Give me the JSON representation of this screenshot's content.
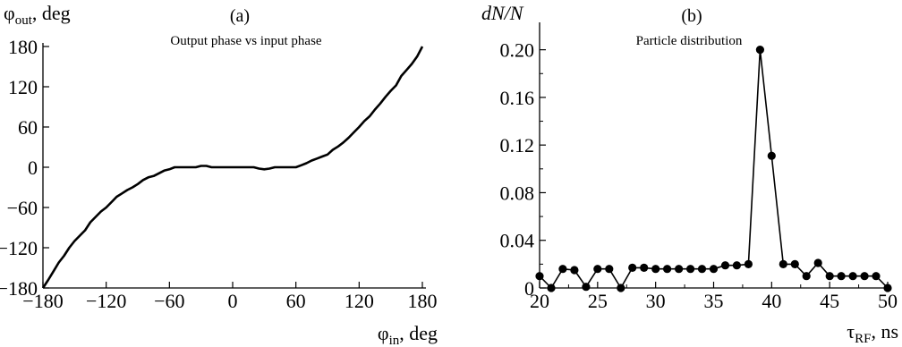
{
  "chart_data": [
    {
      "type": "line",
      "panel_label": "(a)",
      "title": "Output phase vs input phase",
      "ylabel_base": "φ",
      "ylabel_sub": "out",
      "ylabel_tail": ", deg",
      "xlabel_base": "φ",
      "xlabel_sub": "in",
      "xlabel_tail": ", deg",
      "xlim": [
        -180,
        180
      ],
      "ylim": [
        -180,
        180
      ],
      "xticks": [
        -180,
        -120,
        -60,
        0,
        60,
        120,
        180
      ],
      "xtick_labels": [
        "−180",
        "−120",
        "−60",
        "0",
        "60",
        "120",
        "180"
      ],
      "yticks": [
        -180,
        -120,
        -60,
        0,
        60,
        120,
        180
      ],
      "ytick_labels": [
        "−180",
        "−120",
        "−60",
        "0",
        "60",
        "120",
        "180"
      ],
      "grid": false,
      "series": [
        {
          "x": [
            -180,
            -175,
            -170,
            -165,
            -160,
            -155,
            -150,
            -145,
            -140,
            -135,
            -130,
            -125,
            -120,
            -115,
            -110,
            -105,
            -100,
            -95,
            -90,
            -85,
            -80,
            -75,
            -70,
            -65,
            -60,
            -55,
            -50,
            -45,
            -40,
            -35,
            -30,
            -25,
            -20,
            -15,
            -10,
            -5,
            0,
            5,
            10,
            15,
            20,
            25,
            30,
            35,
            40,
            45,
            50,
            55,
            60,
            65,
            70,
            75,
            80,
            85,
            90,
            95,
            100,
            105,
            110,
            115,
            120,
            125,
            130,
            135,
            140,
            145,
            150,
            155,
            160,
            165,
            170,
            175,
            180
          ],
          "y": [
            -180,
            -168,
            -155,
            -142,
            -132,
            -120,
            -110,
            -102,
            -94,
            -82,
            -74,
            -66,
            -60,
            -52,
            -44,
            -39,
            -34,
            -30,
            -25,
            -19,
            -15,
            -13,
            -9,
            -5,
            -3,
            0,
            0,
            0,
            0,
            0,
            2,
            2,
            0,
            0,
            0,
            0,
            0,
            0,
            0,
            0,
            0,
            -2,
            -3,
            -2,
            0,
            0,
            0,
            0,
            0,
            3,
            6,
            10,
            13,
            16,
            19,
            26,
            31,
            37,
            44,
            52,
            60,
            69,
            76,
            86,
            95,
            105,
            114,
            122,
            136,
            145,
            154,
            165,
            180
          ]
        }
      ]
    },
    {
      "type": "line",
      "panel_label": "(b)",
      "title": "Particle distribution",
      "ylabel": "dN/N",
      "xlabel_base": "τ",
      "xlabel_sub": "RF",
      "xlabel_tail": ", ns",
      "xlim": [
        20,
        50
      ],
      "ylim": [
        0,
        0.22
      ],
      "xticks": [
        20,
        25,
        30,
        35,
        40,
        45,
        50
      ],
      "xtick_labels": [
        "20",
        "25",
        "30",
        "35",
        "40",
        "45",
        "50"
      ],
      "yticks": [
        0,
        0.04,
        0.08,
        0.12,
        0.16,
        0.2
      ],
      "ytick_labels": [
        "0",
        "0.04",
        "0.08",
        "0.12",
        "0.16",
        "0.20"
      ],
      "grid": false,
      "markers": true,
      "series": [
        {
          "x": [
            20,
            21,
            22,
            23,
            24,
            25,
            26,
            27,
            28,
            29,
            30,
            31,
            32,
            33,
            34,
            35,
            36,
            37,
            38,
            39,
            40,
            41,
            42,
            43,
            44,
            45,
            46,
            47,
            48,
            49,
            50
          ],
          "y": [
            0.01,
            0.0,
            0.016,
            0.015,
            0.001,
            0.016,
            0.016,
            0.0,
            0.017,
            0.017,
            0.016,
            0.016,
            0.016,
            0.016,
            0.016,
            0.016,
            0.019,
            0.019,
            0.02,
            0.2,
            0.111,
            0.02,
            0.02,
            0.01,
            0.021,
            0.01,
            0.01,
            0.01,
            0.01,
            0.01,
            0.0
          ]
        }
      ]
    }
  ]
}
